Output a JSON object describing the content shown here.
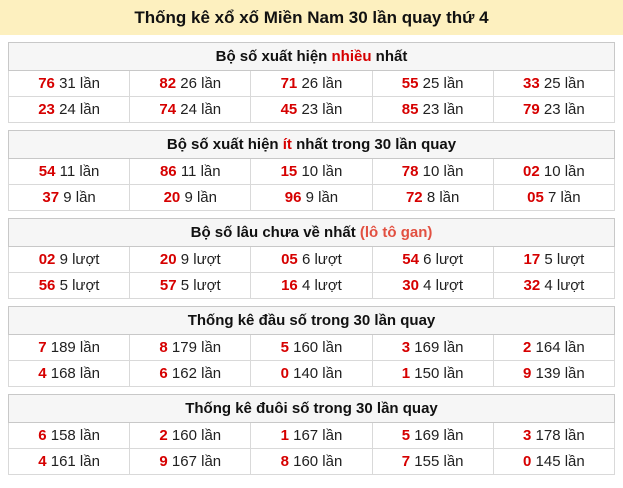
{
  "title": "Thống kê xổ xố Miền Nam 30 lần quay thứ 4",
  "colors": {
    "title_background": "#fdf0bf",
    "section_header_background": "#f6f6f6",
    "number_red": "#d60000",
    "highlight_red": "#d60000",
    "highlight_orange": "#e25041",
    "border_gray": "#c8c8c8"
  },
  "sections": [
    {
      "header": {
        "pre": "Bộ số xuất hiện ",
        "hl": "nhiều",
        "post": " nhất"
      },
      "rows": [
        {
          "cells": [
            {
              "n": "76",
              "t": "31 lần"
            },
            {
              "n": "82",
              "t": "26 lần"
            },
            {
              "n": "71",
              "t": "26 lần"
            },
            {
              "n": "55",
              "t": "25 lần"
            },
            {
              "n": "33",
              "t": "25 lần"
            }
          ]
        },
        {
          "cells": [
            {
              "n": "23",
              "t": "24 lần"
            },
            {
              "n": "74",
              "t": "24 lần"
            },
            {
              "n": "45",
              "t": "23 lần"
            },
            {
              "n": "85",
              "t": "23 lần"
            },
            {
              "n": "79",
              "t": "23 lần"
            }
          ]
        }
      ]
    },
    {
      "header": {
        "pre": "Bộ số xuất hiện ",
        "hl": "ít",
        "post": " nhất trong 30 lần quay"
      },
      "rows": [
        {
          "cells": [
            {
              "n": "54",
              "t": "11 lần"
            },
            {
              "n": "86",
              "t": "11 lần"
            },
            {
              "n": "15",
              "t": "10 lần"
            },
            {
              "n": "78",
              "t": "10 lần"
            },
            {
              "n": "02",
              "t": "10 lần"
            }
          ]
        },
        {
          "cells": [
            {
              "n": "37",
              "t": "9 lần"
            },
            {
              "n": "20",
              "t": "9 lần"
            },
            {
              "n": "96",
              "t": "9 lần"
            },
            {
              "n": "72",
              "t": "8 lần"
            },
            {
              "n": "05",
              "t": "7 lần"
            }
          ]
        }
      ]
    },
    {
      "header": {
        "pre": "Bộ số lâu chưa về nhất ",
        "hl": "(lô tô gan)",
        "post": ""
      },
      "rows": [
        {
          "cells": [
            {
              "n": "02",
              "t": "9 lượt"
            },
            {
              "n": "20",
              "t": "9 lượt"
            },
            {
              "n": "05",
              "t": "6 lượt"
            },
            {
              "n": "54",
              "t": "6 lượt"
            },
            {
              "n": "17",
              "t": "5 lượt"
            }
          ]
        },
        {
          "cells": [
            {
              "n": "56",
              "t": "5 lượt"
            },
            {
              "n": "57",
              "t": "5 lượt"
            },
            {
              "n": "16",
              "t": "4 lượt"
            },
            {
              "n": "30",
              "t": "4 lượt"
            },
            {
              "n": "32",
              "t": "4 lượt"
            }
          ]
        }
      ]
    },
    {
      "header": {
        "pre": "Thống kê đầu số trong 30 lần quay",
        "hl": "",
        "post": ""
      },
      "rows": [
        {
          "cells": [
            {
              "n": "7",
              "t": "189 lần"
            },
            {
              "n": "8",
              "t": "179 lần"
            },
            {
              "n": "5",
              "t": "160 lần"
            },
            {
              "n": "3",
              "t": "169 lần"
            },
            {
              "n": "2",
              "t": "164 lần"
            }
          ]
        },
        {
          "cells": [
            {
              "n": "4",
              "t": "168 lần"
            },
            {
              "n": "6",
              "t": "162 lần"
            },
            {
              "n": "0",
              "t": "140 lần"
            },
            {
              "n": "1",
              "t": "150 lần"
            },
            {
              "n": "9",
              "t": "139 lần"
            }
          ]
        }
      ]
    },
    {
      "header": {
        "pre": "Thống kê đuôi số trong 30 lần quay",
        "hl": "",
        "post": ""
      },
      "rows": [
        {
          "cells": [
            {
              "n": "6",
              "t": "158 lần"
            },
            {
              "n": "2",
              "t": "160 lần"
            },
            {
              "n": "1",
              "t": "167 lần"
            },
            {
              "n": "5",
              "t": "169 lần"
            },
            {
              "n": "3",
              "t": "178 lần"
            }
          ]
        },
        {
          "cells": [
            {
              "n": "4",
              "t": "161 lần"
            },
            {
              "n": "9",
              "t": "167 lần"
            },
            {
              "n": "8",
              "t": "160 lần"
            },
            {
              "n": "7",
              "t": "155 lần"
            },
            {
              "n": "0",
              "t": "145 lần"
            }
          ]
        }
      ]
    }
  ]
}
